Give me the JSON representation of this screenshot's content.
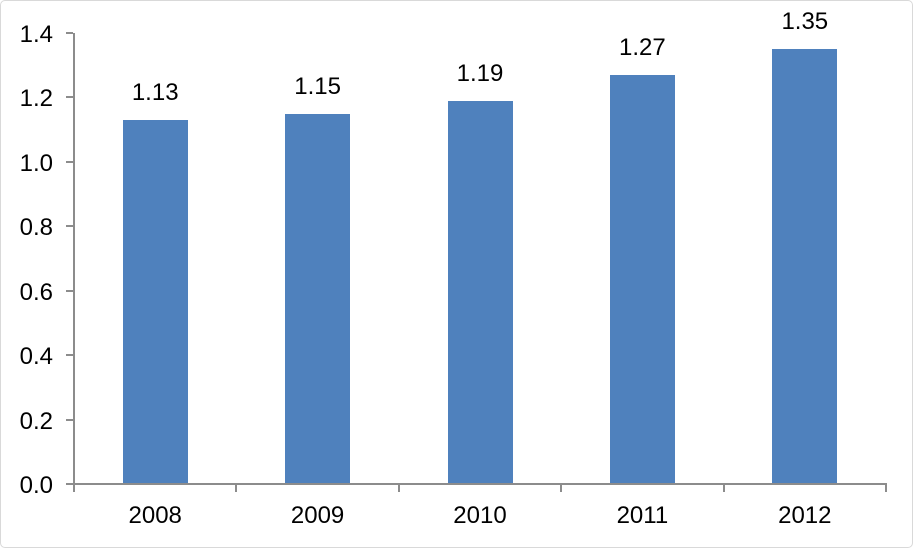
{
  "chart_data": {
    "type": "bar",
    "categories": [
      "2008",
      "2009",
      "2010",
      "2011",
      "2012"
    ],
    "values": [
      1.13,
      1.15,
      1.19,
      1.27,
      1.35
    ],
    "data_labels": [
      "1.13",
      "1.15",
      "1.19",
      "1.27",
      "1.35"
    ],
    "ylim": [
      0,
      1.4
    ],
    "ytick_step": 0.2,
    "ytick_labels": [
      "0.0",
      "0.2",
      "0.4",
      "0.6",
      "0.8",
      "1.0",
      "1.2",
      "1.4"
    ],
    "grid": "off",
    "legend": "none",
    "bar_color": "#4F81BD",
    "axis_color": "#8C8C8C",
    "label_color": "#000000",
    "chart_border_color": "#D9D9D9"
  }
}
